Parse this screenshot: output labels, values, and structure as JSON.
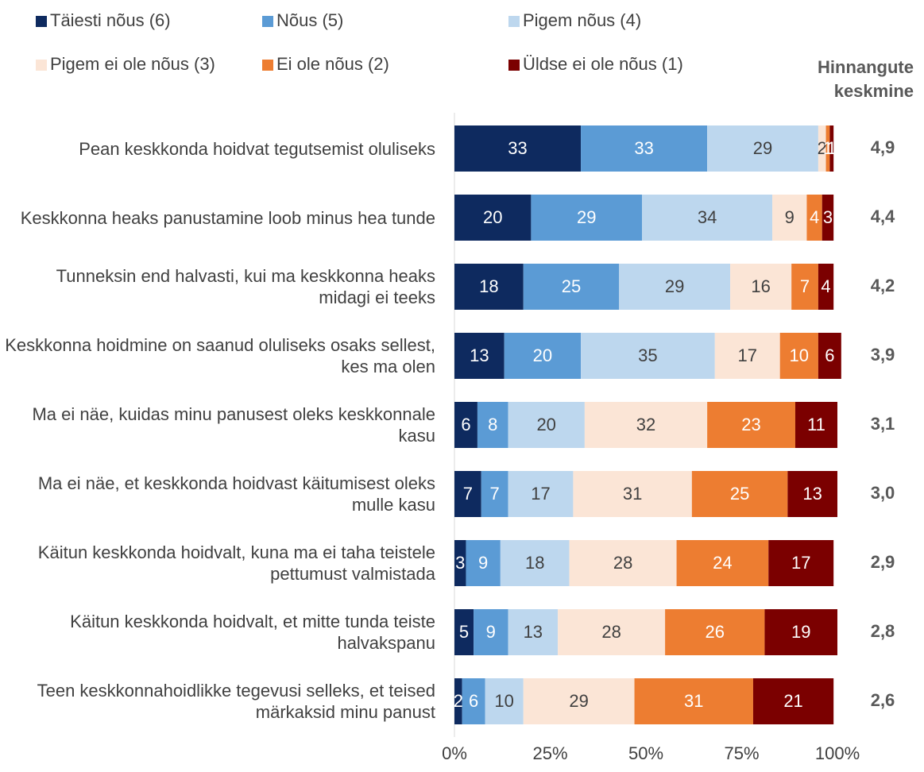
{
  "chart_data": {
    "type": "stacked_barh",
    "categories": [
      "Pean keskkonda hoidvat tegutsemist oluliseks",
      "Keskkonna heaks panustamine loob minus hea tunde",
      "Tunneksin end halvasti, kui ma keskkonna heaks midagi ei teeks",
      "Keskkonna hoidmine on saanud oluliseks osaks sellest, kes ma olen",
      "Ma ei näe, kuidas minu panusest oleks keskkonnale kasu",
      "Ma ei näe, et keskkonda hoidvast käitumisest oleks mulle kasu",
      "Käitun keskkonda hoidvalt, kuna ma ei taha teistele pettumust valmistada",
      "Käitun keskkonda hoidvalt, et mitte tunda teiste halvakspanu",
      "Teen keskkonnahoidlikke tegevusi selleks, et teised märkaksid minu panust"
    ],
    "series": [
      {
        "name": "Täiesti nõus (6)",
        "color": "#0e2a5f",
        "values": [
          33,
          20,
          18,
          13,
          6,
          7,
          3,
          5,
          2
        ]
      },
      {
        "name": "Nõus (5)",
        "color": "#5b9bd5",
        "values": [
          33,
          29,
          25,
          20,
          8,
          7,
          9,
          9,
          6
        ]
      },
      {
        "name": "Pigem nõus (4)",
        "color": "#bdd7ee",
        "values": [
          29,
          34,
          29,
          35,
          20,
          17,
          18,
          13,
          10
        ]
      },
      {
        "name": "Pigem ei ole nõus (3)",
        "color": "#fbe5d6",
        "values": [
          2,
          9,
          16,
          17,
          32,
          31,
          28,
          28,
          29
        ]
      },
      {
        "name": "Ei ole nõus (2)",
        "color": "#ed7d31",
        "values": [
          1,
          4,
          7,
          10,
          23,
          25,
          24,
          26,
          31
        ]
      },
      {
        "name": "Üldse ei ole nõus (1)",
        "color": "#7b0000",
        "values": [
          1,
          3,
          4,
          6,
          11,
          13,
          17,
          19,
          21
        ]
      }
    ],
    "xlim": [
      0,
      100
    ],
    "xticks": [
      {
        "value": 0,
        "label": "0%"
      },
      {
        "value": 25,
        "label": "25%"
      },
      {
        "value": 50,
        "label": "50%"
      },
      {
        "value": 75,
        "label": "75%"
      },
      {
        "value": 100,
        "label": "100%"
      }
    ],
    "means_title": "Hinnangute keskmine",
    "means": [
      "4,9",
      "4,4",
      "4,2",
      "3,9",
      "3,1",
      "3,0",
      "2,9",
      "2,8",
      "2,6"
    ],
    "legend": "top",
    "grid": false
  }
}
